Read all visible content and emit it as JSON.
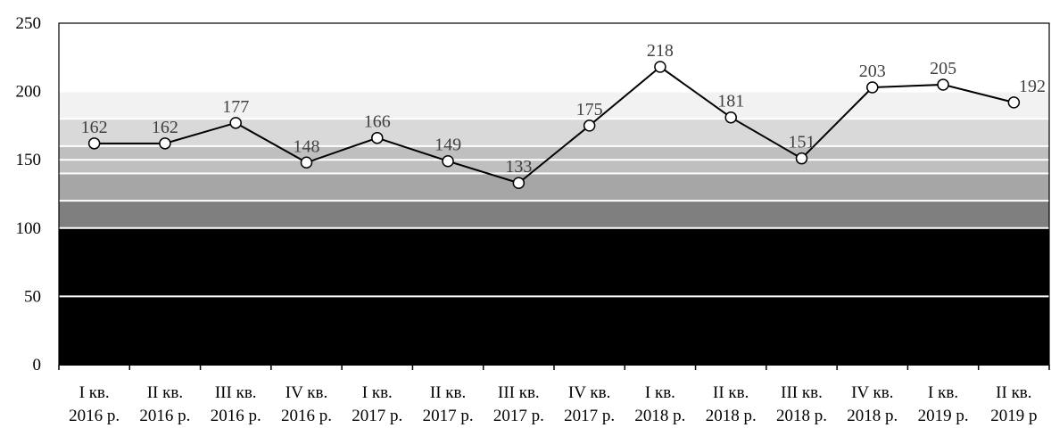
{
  "chart_data": {
    "type": "line",
    "categories": [
      [
        "I кв.",
        "2016 р."
      ],
      [
        "II кв.",
        "2016 р."
      ],
      [
        "III кв.",
        "2016 р."
      ],
      [
        "IV кв.",
        "2016 р."
      ],
      [
        "I кв.",
        "2017 р."
      ],
      [
        "II кв.",
        "2017 р."
      ],
      [
        "III кв.",
        "2017 р."
      ],
      [
        "IV кв.",
        "2017 р."
      ],
      [
        "I кв.",
        "2018 р."
      ],
      [
        "II кв.",
        "2018 р."
      ],
      [
        "III кв.",
        "2018 р."
      ],
      [
        "IV кв.",
        "2018 р."
      ],
      [
        "I кв.",
        "2019 р."
      ],
      [
        "II кв.",
        "2019 р"
      ]
    ],
    "series": [
      {
        "values": [
          162,
          162,
          177,
          148,
          166,
          149,
          133,
          175,
          218,
          181,
          151,
          203,
          205,
          192
        ],
        "color": "#000000",
        "marker_fill": "#ffffff"
      }
    ],
    "data_labels": [
      "162",
      "162",
      "177",
      "148",
      "166",
      "149",
      "133",
      "175",
      "218",
      "181",
      "151",
      "203",
      "205",
      "192"
    ],
    "y_ticks": [
      "0",
      "50",
      "100",
      "150",
      "200",
      "250"
    ],
    "ylim": [
      0,
      250
    ],
    "grid": true,
    "bands": [
      {
        "from": 0,
        "to": 100,
        "color": "#000000"
      },
      {
        "from": 100,
        "to": 120,
        "color": "#7f7f7f"
      },
      {
        "from": 120,
        "to": 140,
        "color": "#a6a6a6"
      },
      {
        "from": 140,
        "to": 160,
        "color": "#bfbfbf"
      },
      {
        "from": 160,
        "to": 180,
        "color": "#d9d9d9"
      },
      {
        "from": 180,
        "to": 200,
        "color": "#f2f2f2"
      },
      {
        "from": 200,
        "to": 250,
        "color": "#ffffff"
      }
    ],
    "title": "",
    "xlabel": "",
    "ylabel": ""
  }
}
